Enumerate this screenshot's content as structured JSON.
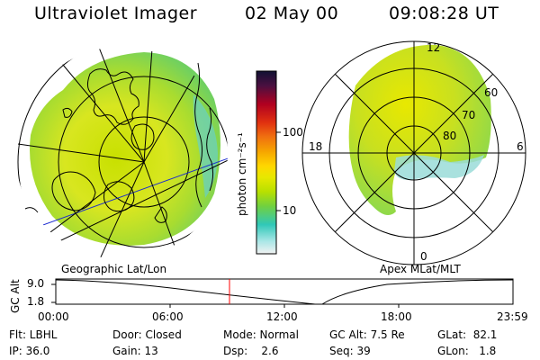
{
  "header": {
    "instrument": "Ultraviolet Imager",
    "date": "02 May 00",
    "time": "09:08:28 UT"
  },
  "geo_panel": {
    "label": "Geographic Lat/Lon"
  },
  "apex_panel": {
    "label": "Apex MLat/MLT",
    "mlt_labels": [
      "12",
      "18",
      "6",
      "0"
    ],
    "mlat_labels": [
      "60",
      "70",
      "80"
    ]
  },
  "colorbar": {
    "unit_label": "photon cm⁻²s⁻¹",
    "tick_labels": [
      "100",
      "10"
    ],
    "colors": [
      "#111133",
      "#4a1040",
      "#b00020",
      "#e03010",
      "#f07010",
      "#f6a500",
      "#ffd700",
      "#e8e800",
      "#b8e000",
      "#70d040",
      "#30c8b8",
      "#a8e6e6",
      "#f2f2f2"
    ]
  },
  "timeline": {
    "axis_label": "GC Alt",
    "y_ticks": [
      "9.0",
      "1.8"
    ],
    "x_ticks": [
      "00:00",
      "06:00",
      "12:00",
      "18:00",
      "23:59"
    ],
    "current_marker_color": "#ff0000"
  },
  "info": {
    "row1": [
      "Flt: LBHL",
      "Door: Closed",
      "Mode: Normal",
      "GC Alt: 7.5 Re",
      "GLat:  82.1"
    ],
    "row2": [
      "IP: 36.0",
      "Gain: 13",
      "Dsp:    2.6",
      "Seq: 39",
      "GLon:   1.8"
    ]
  }
}
